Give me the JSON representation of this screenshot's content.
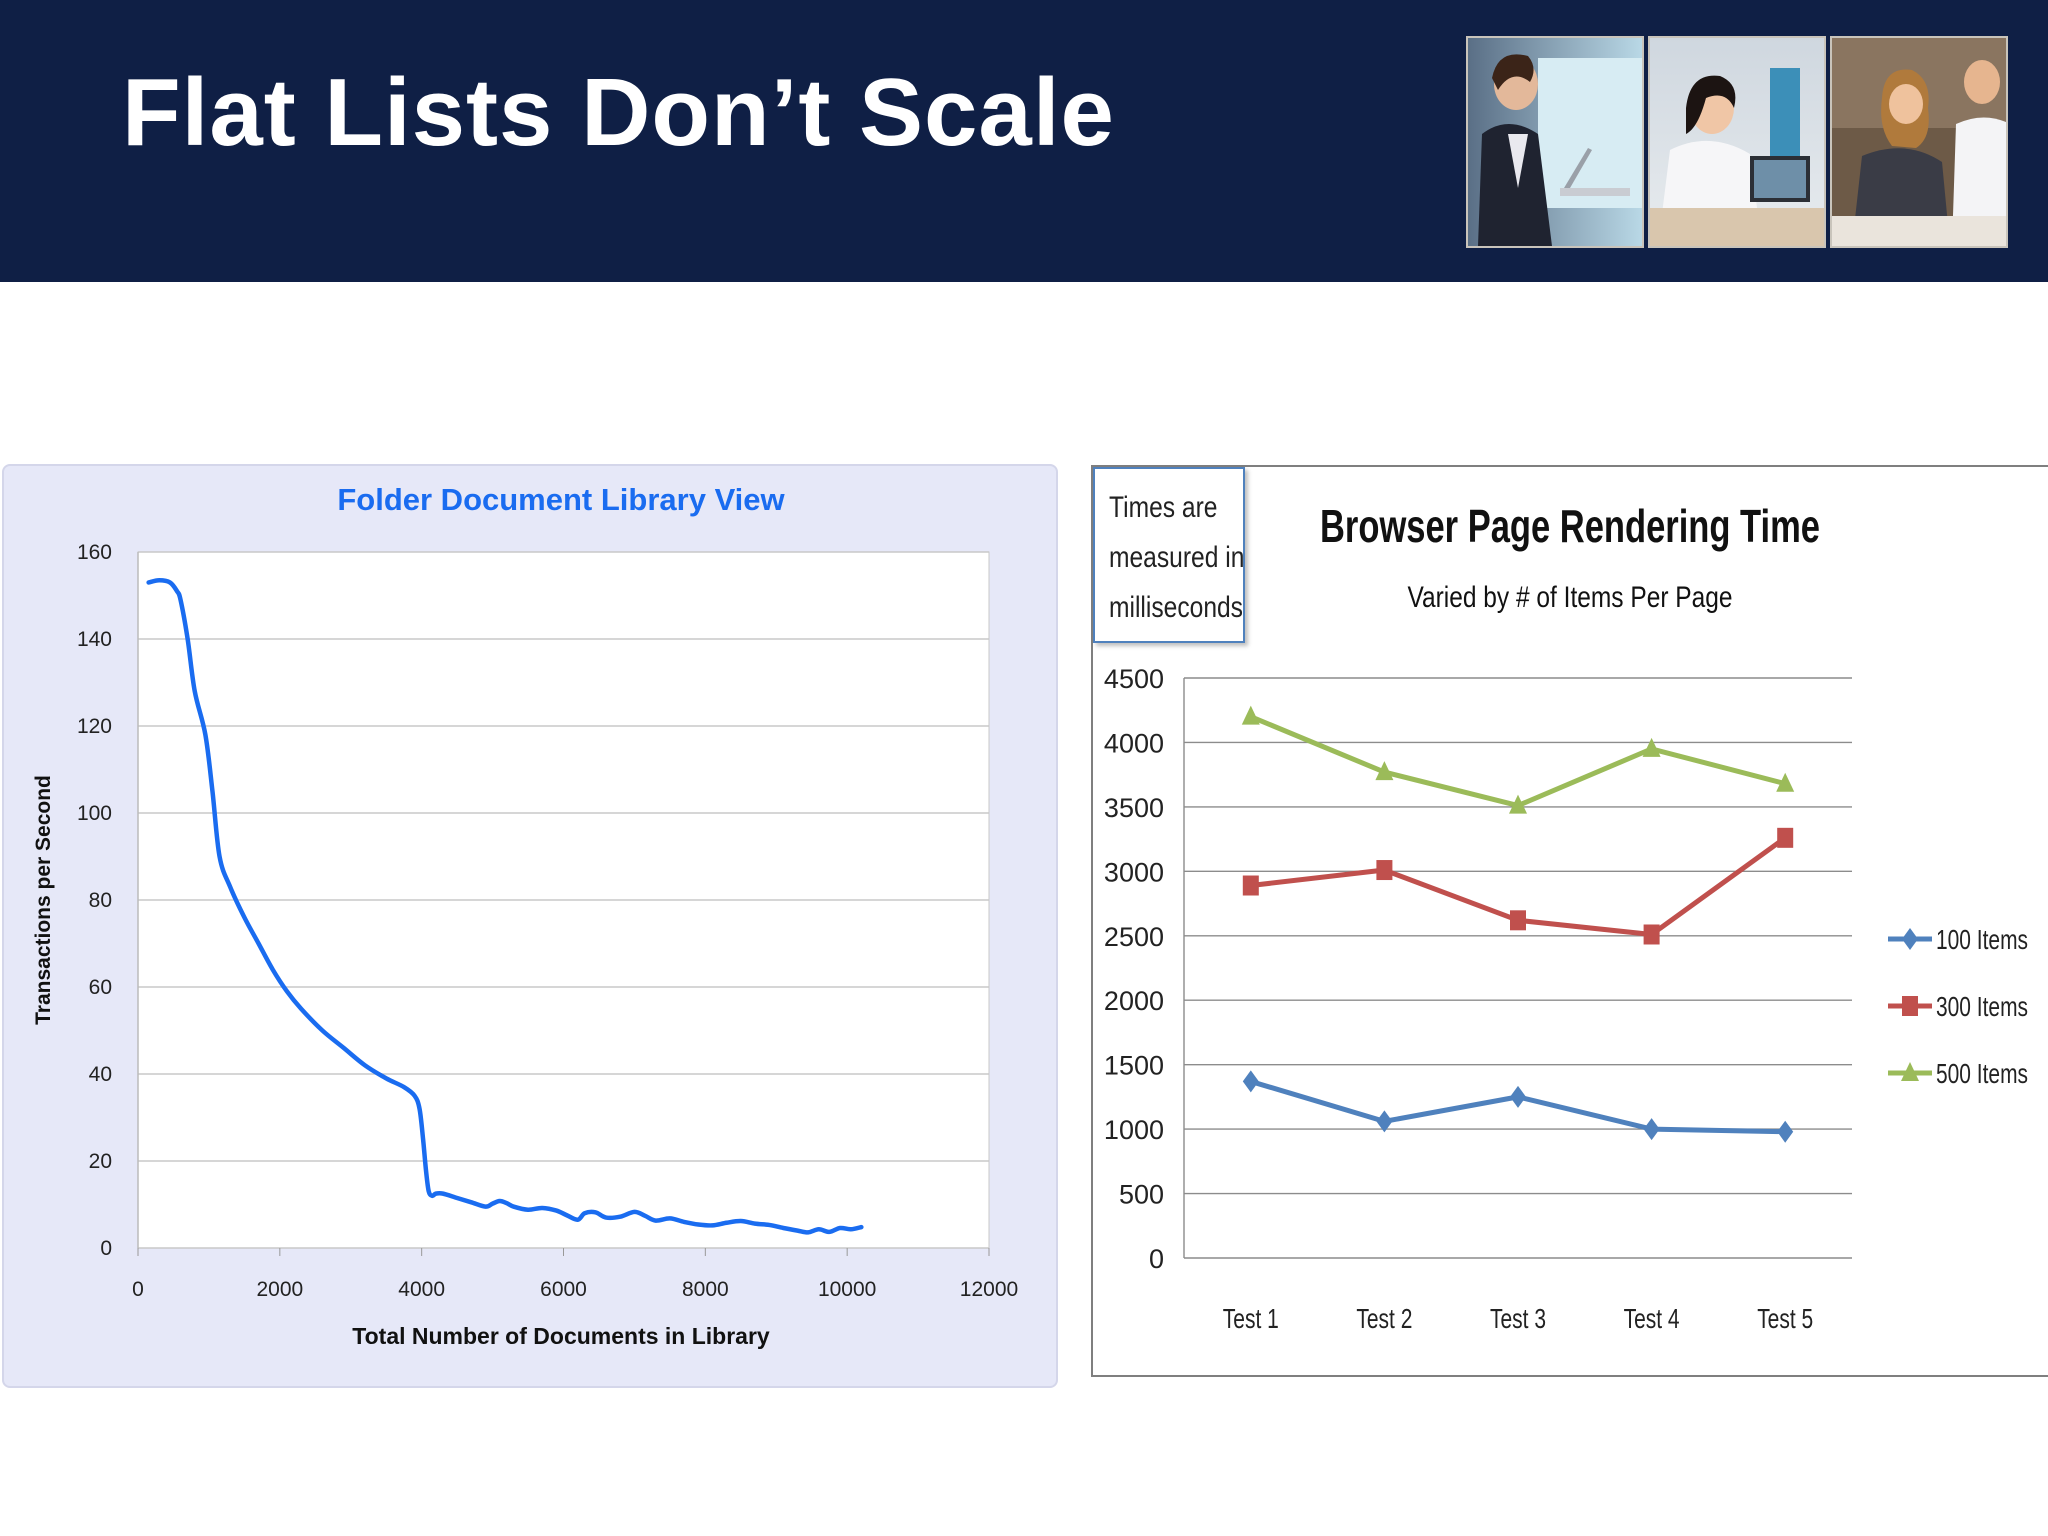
{
  "slide": {
    "title": "Flat Lists Don’t Scale"
  },
  "note": {
    "lines": [
      "Times are",
      "measured in",
      "milliseconds"
    ]
  },
  "colors": {
    "header_bg": "#0f1f45",
    "left_line": "#1a6cf0",
    "left_title": "#1a6cf0",
    "series_100": "#4f81bd",
    "series_300": "#c0504d",
    "series_500": "#9bbb59"
  },
  "chart_data": [
    {
      "type": "line",
      "title": "Folder Document Library View",
      "xlabel": "Total Number of Documents in Library",
      "ylabel": "Transactions per Second",
      "xlim": [
        0,
        12000
      ],
      "ylim": [
        0,
        160
      ],
      "xticks": [
        "0",
        "2000",
        "4000",
        "6000",
        "8000",
        "10000",
        "12000"
      ],
      "yticks": [
        "0",
        "20",
        "40",
        "60",
        "80",
        "100",
        "120",
        "140",
        "160"
      ],
      "grid": true,
      "series": [
        {
          "x": [
            150,
            300,
            450,
            550,
            600,
            700,
            800,
            950,
            1050,
            1150,
            1300,
            1500,
            1700,
            1900,
            2100,
            2300,
            2600,
            2900,
            3200,
            3500,
            3750,
            3900,
            3970,
            4020,
            4060,
            4100,
            4150,
            4200,
            4300,
            4500,
            4700,
            4900,
            5000,
            5100,
            5200,
            5300,
            5500,
            5700,
            5900,
            6050,
            6200,
            6300,
            6450,
            6600,
            6800,
            7000,
            7150,
            7300,
            7500,
            7700,
            7900,
            8100,
            8300,
            8500,
            8700,
            8900,
            9100,
            9300,
            9450,
            9600,
            9750,
            9900,
            10050,
            10200
          ],
          "y": [
            153,
            153.5,
            153,
            151,
            149,
            140,
            128,
            118,
            105,
            90,
            83,
            76,
            70,
            64,
            59,
            55,
            50,
            46,
            42,
            39,
            37,
            35,
            32,
            25,
            18,
            13,
            12,
            12.5,
            12.5,
            11.5,
            10.5,
            9.5,
            10.2,
            10.8,
            10.3,
            9.5,
            8.8,
            9.2,
            8.6,
            7.5,
            6.5,
            8,
            8.2,
            7,
            7.2,
            8.3,
            7.4,
            6.3,
            6.8,
            6,
            5.4,
            5.2,
            5.8,
            6.2,
            5.6,
            5.3,
            4.6,
            4,
            3.6,
            4.3,
            3.7,
            4.6,
            4.3,
            4.8
          ]
        }
      ]
    },
    {
      "type": "line",
      "title": "Browser Page Rendering Time",
      "subtitle": "Varied by # of Items Per Page",
      "categories": [
        "Test 1",
        "Test 2",
        "Test 3",
        "Test 4",
        "Test 5"
      ],
      "ylim": [
        0,
        4500
      ],
      "yticks": [
        "0",
        "500",
        "1000",
        "1500",
        "2000",
        "2500",
        "3000",
        "3500",
        "4000",
        "4500"
      ],
      "grid": true,
      "legend": "right",
      "series": [
        {
          "name": "100 Items",
          "values": [
            1370,
            1060,
            1250,
            1000,
            980
          ],
          "marker": "diamond",
          "color": "#4f81bd"
        },
        {
          "name": "300 Items",
          "values": [
            2890,
            3010,
            2620,
            2510,
            3260
          ],
          "marker": "square",
          "color": "#c0504d"
        },
        {
          "name": "500 Items",
          "values": [
            4200,
            3770,
            3510,
            3950,
            3680
          ],
          "marker": "triangle",
          "color": "#9bbb59"
        }
      ]
    }
  ]
}
